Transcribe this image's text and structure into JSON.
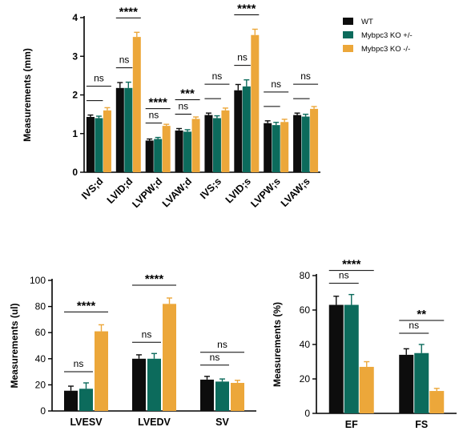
{
  "colors": {
    "WT": "#0d0d0d",
    "HET": "#0c6b5c",
    "KO": "#eca73a"
  },
  "legend": [
    {
      "label": "WT",
      "color": "#0d0d0d"
    },
    {
      "label": "Mybpc3 KO +/-",
      "color": "#0c6b5c"
    },
    {
      "label": "Mybpc3 KO -/-",
      "color": "#eca73a"
    }
  ],
  "chart_data": [
    {
      "type": "bar",
      "ylabel": "Measurements (mm)",
      "ylim": [
        0,
        4
      ],
      "yticks": [
        0,
        1,
        2,
        3,
        4
      ],
      "categories": [
        "IVS;d",
        "LVID;d",
        "LVPW;d",
        "LVAW;d",
        "IVS;s",
        "LVID;s",
        "LVPW;s",
        "LVAW;s"
      ],
      "series": [
        {
          "name": "WT",
          "values": [
            1.43,
            2.18,
            0.82,
            1.08,
            1.48,
            2.12,
            1.27,
            1.48
          ],
          "errors": [
            0.05,
            0.14,
            0.04,
            0.05,
            0.05,
            0.15,
            0.06,
            0.05
          ]
        },
        {
          "name": "Mybpc3 KO +/-",
          "values": [
            1.4,
            2.18,
            0.86,
            1.05,
            1.4,
            2.22,
            1.22,
            1.44
          ],
          "errors": [
            0.05,
            0.15,
            0.04,
            0.05,
            0.06,
            0.17,
            0.07,
            0.06
          ]
        },
        {
          "name": "Mybpc3 KO -/-",
          "values": [
            1.6,
            3.5,
            1.2,
            1.38,
            1.6,
            3.55,
            1.3,
            1.64
          ],
          "errors": [
            0.07,
            0.12,
            0.04,
            0.05,
            0.06,
            0.15,
            0.07,
            0.06
          ]
        }
      ],
      "annotations": [
        {
          "category": "IVS;d",
          "lower": "—",
          "upper": "ns"
        },
        {
          "category": "LVID;d",
          "lower": "ns",
          "upper": "****"
        },
        {
          "category": "LVPW;d",
          "lower": "ns",
          "upper": "****"
        },
        {
          "category": "LVAW;d",
          "lower": "ns",
          "upper": "***"
        },
        {
          "category": "IVS;s",
          "lower": "—",
          "upper": "ns"
        },
        {
          "category": "LVID;s",
          "lower": "ns",
          "upper": "****"
        },
        {
          "category": "LVPW;s",
          "lower": "—",
          "upper": "ns"
        },
        {
          "category": "LVAW;s",
          "lower": "—",
          "upper": "ns"
        }
      ]
    },
    {
      "type": "bar",
      "ylabel": "Measurements (ul)",
      "ylim": [
        0,
        100
      ],
      "yticks": [
        0,
        20,
        40,
        60,
        80,
        100
      ],
      "categories": [
        "LVESV",
        "LVEDV",
        "SV"
      ],
      "series": [
        {
          "name": "WT",
          "values": [
            15.5,
            40,
            24
          ],
          "errors": [
            3.5,
            3,
            2.5
          ]
        },
        {
          "name": "Mybpc3 KO +/-",
          "values": [
            17,
            40,
            22.5
          ],
          "errors": [
            4.5,
            4,
            2
          ]
        },
        {
          "name": "Mybpc3 KO -/-",
          "values": [
            61,
            82,
            21.5
          ],
          "errors": [
            5,
            4.5,
            2
          ]
        }
      ],
      "annotations": [
        {
          "category": "LVESV",
          "lower": "ns",
          "upper": "****"
        },
        {
          "category": "LVEDV",
          "lower": "ns",
          "upper": "****"
        },
        {
          "category": "SV",
          "lower": "ns",
          "upper": "ns"
        }
      ]
    },
    {
      "type": "bar",
      "ylabel": "Measurements (%)",
      "ylim": [
        0,
        80
      ],
      "yticks": [
        0,
        20,
        40,
        60,
        80
      ],
      "categories": [
        "EF",
        "FS"
      ],
      "series": [
        {
          "name": "WT",
          "values": [
            63,
            34
          ],
          "errors": [
            5,
            3.5
          ]
        },
        {
          "name": "Mybpc3 KO +/-",
          "values": [
            63,
            35
          ],
          "errors": [
            6,
            5
          ]
        },
        {
          "name": "Mybpc3 KO -/-",
          "values": [
            27,
            13
          ],
          "errors": [
            3,
            1.5
          ]
        }
      ],
      "annotations": [
        {
          "category": "EF",
          "lower": "ns",
          "upper": "****"
        },
        {
          "category": "FS",
          "lower": "ns",
          "upper": "**"
        }
      ]
    }
  ]
}
